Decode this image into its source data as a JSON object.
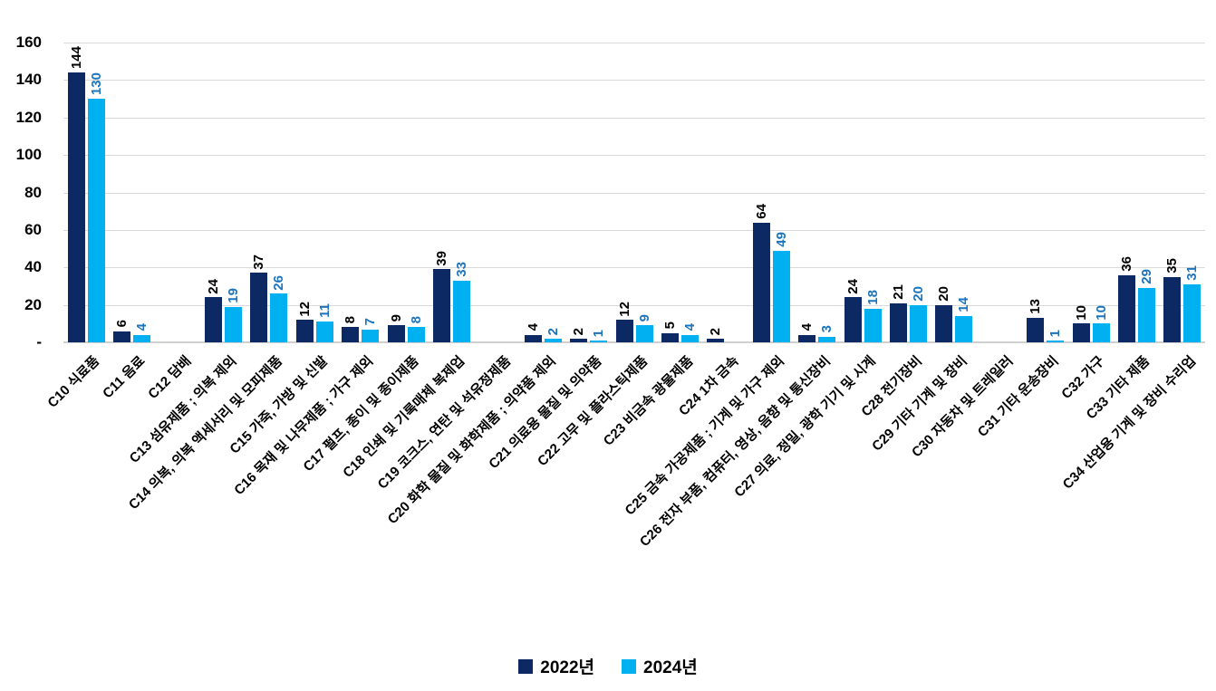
{
  "chart_data": {
    "type": "bar",
    "title": "",
    "xlabel": "",
    "ylabel": "",
    "grid": true,
    "legend_position": "bottom-center",
    "y_axis": {
      "min": 0,
      "max": 160,
      "step": 20,
      "tick_labels_top_to_bottom": [
        "160",
        "140",
        "120",
        "100",
        "80",
        "60",
        "40",
        "20",
        "-"
      ]
    },
    "categories": [
      "C10 식료품",
      "C11 음료",
      "C12 담배",
      "C13 섬유제품 ; 의복 제외",
      "C14 의복, 의복 액세서리 및 모피제품",
      "C15 가죽, 가방 및 신발",
      "C16 목재 및 나무제품 ; 가구 제외",
      "C17 펄프, 종이 및 종이제품",
      "C18 인쇄 및 기록매체 복제업",
      "C19 코크스, 연탄 및 석유정제품",
      "C20 화학 물질 및 화학제품 ; 의약품 제외",
      "C21 의료용 물질 및 의약품",
      "C22 고무 및 플라스틱제품",
      "C23 비금속 광물제품",
      "C24 1차 금속",
      "C25 금속 가공제품 ; 기계 및 가구 제외",
      "C26 전자 부품, 컴퓨터, 영상, 음향 및 통신장비",
      "C27 의료, 정밀, 광학 기기 및 시계",
      "C28 전기장비",
      "C29 기타 기계 및 장비",
      "C30 자동차 및 트레일러",
      "C31 기타 운송장비",
      "C32 가구",
      "C33 기타 제품",
      "C34 산업용 기계 및 장비 수리업"
    ],
    "series": [
      {
        "name": "2022년",
        "color": "#0c2963",
        "label_color": "#000000",
        "values": [
          144,
          6,
          null,
          24,
          37,
          12,
          8,
          9,
          39,
          null,
          4,
          2,
          12,
          5,
          2,
          64,
          4,
          24,
          21,
          20,
          null,
          13,
          10,
          36,
          35
        ]
      },
      {
        "name": "2024년",
        "color": "#00b0f0",
        "label_color": "#1b74bc",
        "values": [
          130,
          4,
          null,
          19,
          26,
          11,
          7,
          8,
          33,
          null,
          2,
          1,
          9,
          4,
          null,
          49,
          3,
          18,
          20,
          14,
          null,
          1,
          10,
          29,
          31
        ]
      }
    ]
  }
}
